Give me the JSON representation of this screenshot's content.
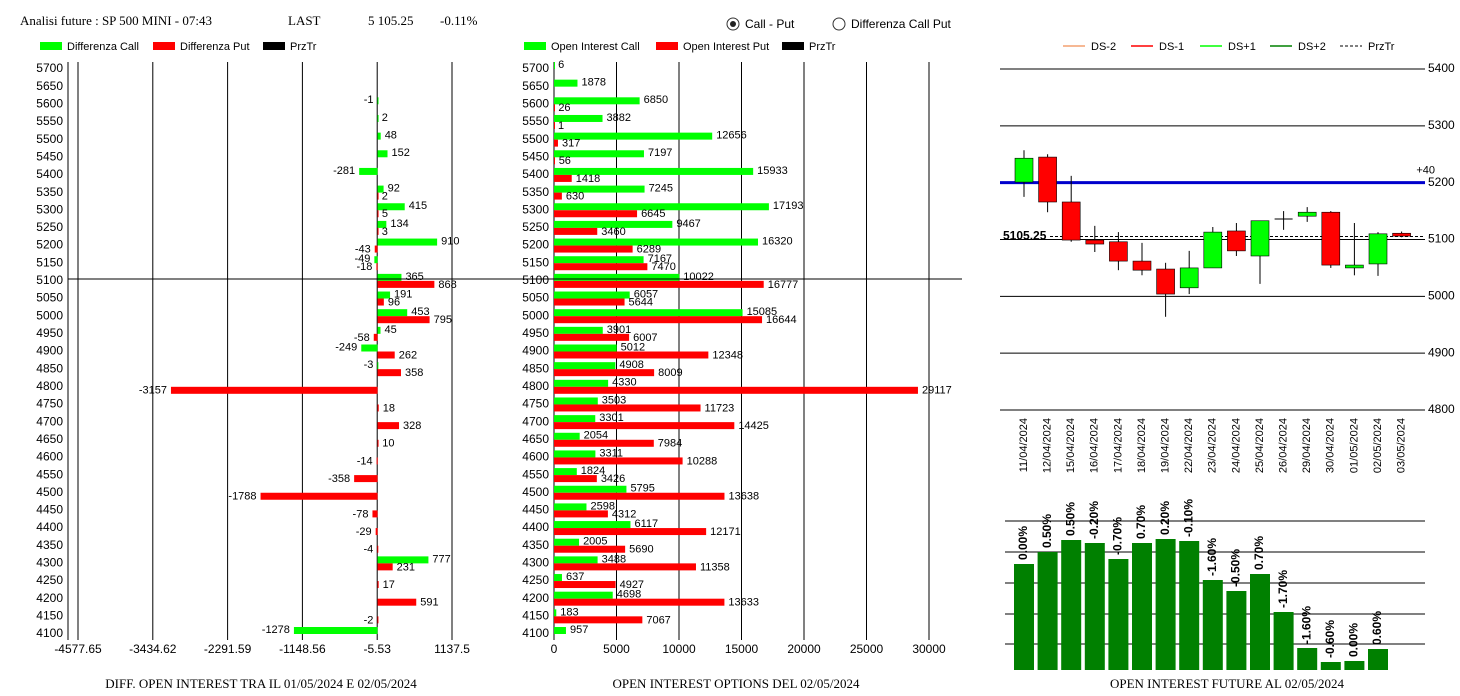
{
  "header": {
    "title": "Analisi future : SP 500 MINI - 07:43",
    "last_label": "LAST",
    "last": "5 105.25",
    "change": "-0.11%"
  },
  "options": [
    "Call - Put",
    "Differenza Call Put"
  ],
  "selected_option": 0,
  "chart_data": [
    {
      "type": "hbar",
      "title": "DIFF. OPEN INTEREST TRA IL 01/05/2024 E 02/05/2024",
      "categories": [
        5700,
        5650,
        5600,
        5550,
        5500,
        5450,
        5400,
        5350,
        5300,
        5250,
        5200,
        5150,
        5100,
        5050,
        5000,
        4950,
        4900,
        4850,
        4800,
        4750,
        4700,
        4650,
        4600,
        4550,
        4500,
        4450,
        4400,
        4350,
        4300,
        4250,
        4200,
        4150,
        4100
      ],
      "series": [
        {
          "name": "Differenza Call",
          "color": "#00ff00",
          "values": [
            null,
            null,
            -1,
            2,
            48,
            152,
            -281,
            92,
            415,
            134,
            910,
            -49,
            365,
            191,
            453,
            45,
            -249,
            -3,
            null,
            null,
            null,
            null,
            null,
            null,
            null,
            null,
            null,
            null,
            777,
            null,
            null,
            null,
            -1278
          ]
        },
        {
          "name": "Differenza Put",
          "color": "#ff0000",
          "values": [
            null,
            null,
            null,
            null,
            null,
            null,
            null,
            2,
            5,
            3,
            -43,
            -18,
            868,
            96,
            795,
            -58,
            262,
            358,
            -3157,
            18,
            328,
            10,
            -14,
            -358,
            -1788,
            -78,
            -29,
            -4,
            231,
            17,
            591,
            -2,
            null
          ]
        },
        {
          "name": "PrzTr",
          "color": "#000000"
        }
      ],
      "price_line": 5105.25,
      "xlim": [
        -4577.65,
        1137.5
      ],
      "xticks": [
        -4577.65,
        -3434.62,
        -2291.59,
        -1148.56,
        -5.53,
        1137.5
      ]
    },
    {
      "type": "hbar",
      "title": "OPEN INTEREST OPTIONS DEL 02/05/2024",
      "categories": [
        5700,
        5650,
        5600,
        5550,
        5500,
        5450,
        5400,
        5350,
        5300,
        5250,
        5200,
        5150,
        5100,
        5050,
        5000,
        4950,
        4900,
        4850,
        4800,
        4750,
        4700,
        4650,
        4600,
        4550,
        4500,
        4450,
        4400,
        4350,
        4300,
        4250,
        4200,
        4150,
        4100
      ],
      "series": [
        {
          "name": "Open Interest Call",
          "color": "#00ff00",
          "values": [
            6,
            1878,
            6850,
            3882,
            12656,
            7197,
            15933,
            7245,
            17193,
            9467,
            16320,
            7167,
            10022,
            6057,
            15085,
            3901,
            5012,
            4908,
            4330,
            3503,
            3301,
            2054,
            3311,
            1824,
            5795,
            2598,
            6117,
            2005,
            3488,
            637,
            4698,
            183,
            957
          ]
        },
        {
          "name": "Open Interest Put",
          "color": "#ff0000",
          "values": [
            null,
            null,
            26,
            1,
            317,
            56,
            1418,
            630,
            6645,
            3460,
            6289,
            7470,
            16777,
            5644,
            16644,
            6007,
            12348,
            8009,
            29117,
            11723,
            14425,
            7984,
            10288,
            3426,
            13638,
            4312,
            12171,
            5690,
            11358,
            4927,
            13633,
            7067,
            null
          ]
        },
        {
          "name": "PrzTr",
          "color": "#000000"
        }
      ],
      "price_line": 5105.25,
      "xlim": [
        0,
        32640
      ],
      "xticks": [
        0,
        5000,
        10000,
        15000,
        20000,
        25000,
        30000
      ]
    },
    {
      "type": "candlestick",
      "categories": [
        "11/04/2024",
        "12/04/2024",
        "15/04/2024",
        "16/04/2024",
        "17/04/2024",
        "18/04/2024",
        "19/04/2024",
        "22/04/2024",
        "23/04/2024",
        "24/04/2024",
        "25/04/2024",
        "26/04/2024",
        "29/04/2024",
        "30/04/2024",
        "01/05/2024",
        "02/05/2024",
        "03/05/2024"
      ],
      "open": [
        5201,
        5245,
        5166,
        5099,
        5096,
        5062,
        5048,
        5015,
        5050,
        5115,
        5071,
        5136,
        5141,
        5148,
        5050,
        5057,
        5111
      ],
      "high": [
        5257,
        5250,
        5212,
        5124,
        5113,
        5094,
        5059,
        5080,
        5122,
        5129,
        5133,
        5150,
        5157,
        5150,
        5129,
        5113,
        5114
      ],
      "low": [
        5175,
        5148,
        5096,
        5078,
        5046,
        5037,
        4964,
        5004,
        5050,
        5071,
        5022,
        5117,
        5131,
        5050,
        5037,
        5036,
        5104
      ],
      "close": [
        5243,
        5166,
        5099,
        5092,
        5062,
        5046,
        5004,
        5050,
        5113,
        5080,
        5133,
        5136,
        5148,
        5055,
        5055,
        5110,
        5106
      ],
      "up_color": "#00ff00",
      "down_color": "#ff0000",
      "series": [
        {
          "name": "DS-2",
          "color": "#f4a070"
        },
        {
          "name": "DS-1",
          "color": "#ff0000"
        },
        {
          "name": "DS+1",
          "color": "#00ff00"
        },
        {
          "name": "DS+2",
          "color": "#008000"
        },
        {
          "name": "PrzTr",
          "color": "#000000",
          "dashed": true
        }
      ],
      "level": {
        "value": 5200,
        "label": "+40",
        "color": "#0000cc"
      },
      "price_line": 5105.25,
      "ylim": [
        4800,
        5400
      ],
      "yticks": [
        4800,
        4900,
        5000,
        5100,
        5200,
        5300,
        5400
      ],
      "grid": true
    },
    {
      "type": "bar",
      "title": "OPEN INTEREST FUTURE AL 02/05/2024",
      "values": [
        106,
        118,
        130,
        127,
        111,
        127,
        131,
        129,
        90,
        79,
        96,
        58,
        22,
        8,
        9,
        21
      ],
      "bar_labels": [
        "0.00%",
        "0.50%",
        "0.50%",
        "-0.20%",
        "-0.70%",
        "0.70%",
        "0.20%",
        "-0.10%",
        "-1.60%",
        "-0.50%",
        "0.70%",
        "-1.70%",
        "-1.60%",
        "-0.60%",
        "0.00%",
        "0.60%"
      ],
      "color": "#008000",
      "ylim": [
        0,
        150
      ]
    }
  ]
}
